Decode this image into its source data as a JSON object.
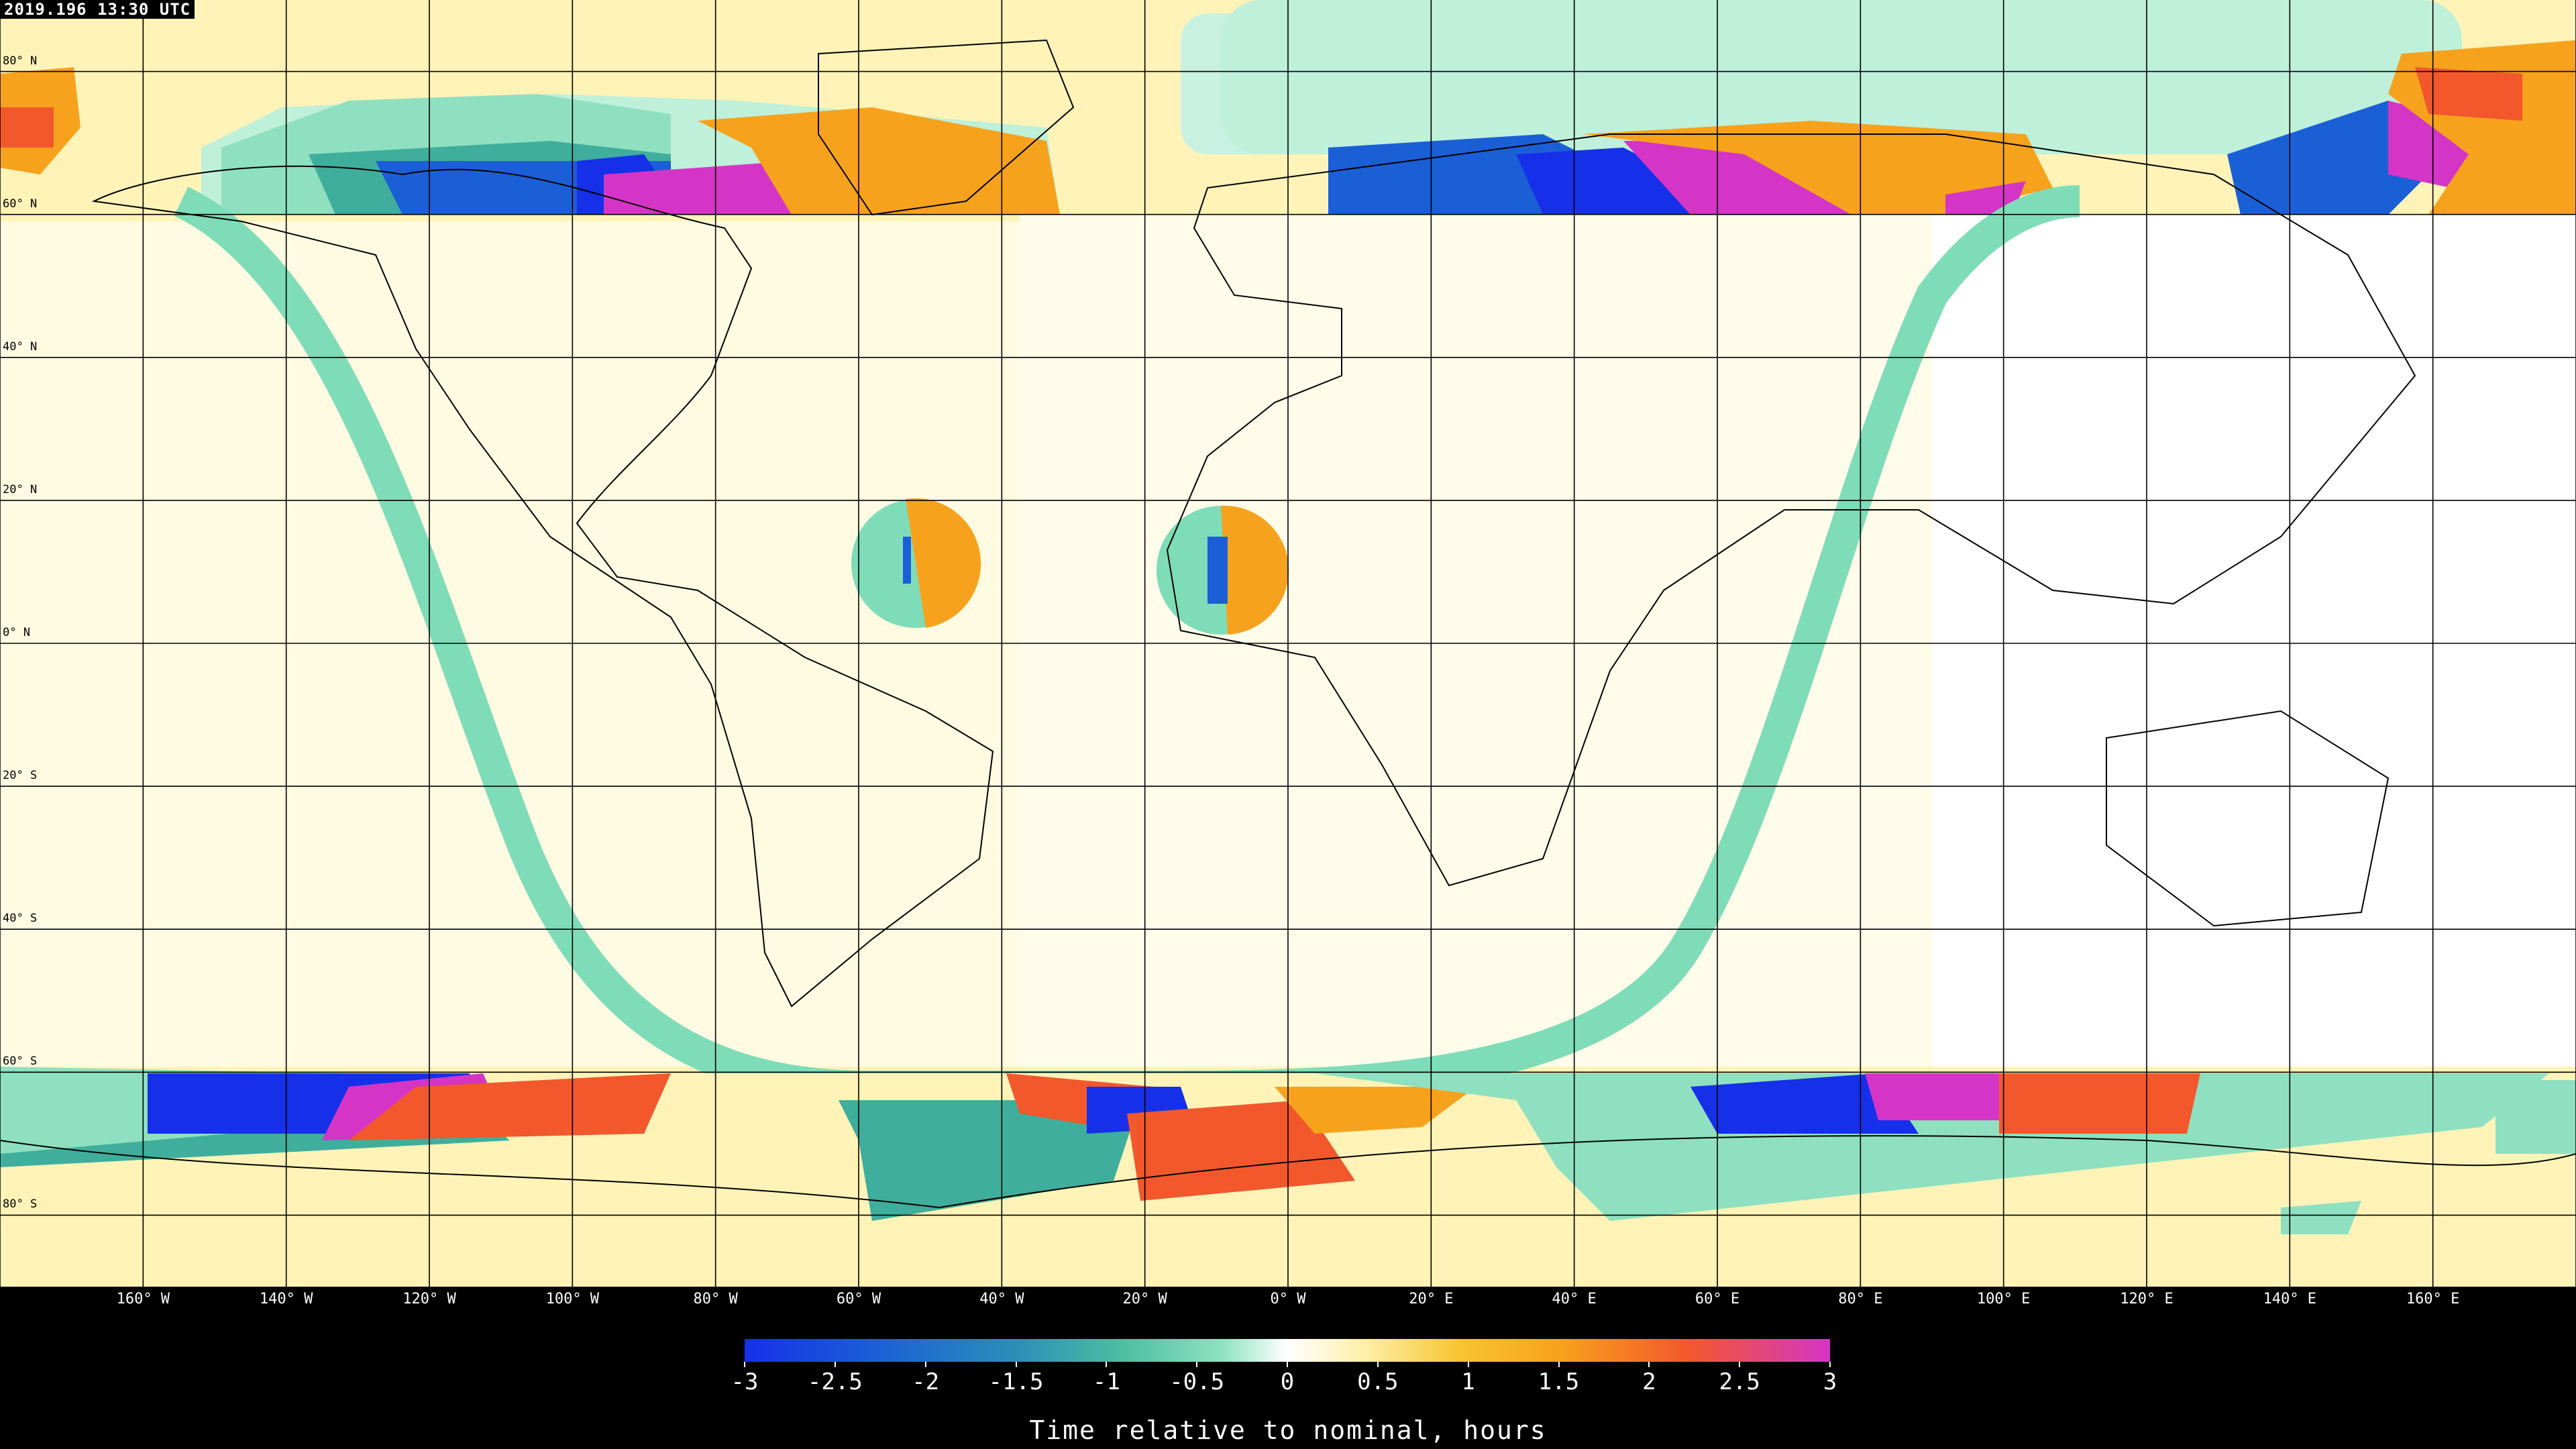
{
  "timestamp": "2019.196 13:30 UTC",
  "lat_labels": [
    "80° N",
    "60° N",
    "40° N",
    "20° N",
    "0° N",
    "20° S",
    "40° S",
    "60° S",
    "80° S"
  ],
  "lat_values": [
    80,
    60,
    40,
    20,
    0,
    -20,
    -40,
    -60,
    -80
  ],
  "lon_labels": [
    "160° W",
    "140° W",
    "120° W",
    "100° W",
    "80° W",
    "60° W",
    "40° W",
    "20° W",
    "0° W",
    "20° E",
    "40° E",
    "60° E",
    "80° E",
    "100° E",
    "120° E",
    "140° E",
    "160° E"
  ],
  "lon_values": [
    -160,
    -140,
    -120,
    -100,
    -80,
    -60,
    -40,
    -20,
    0,
    20,
    40,
    60,
    80,
    100,
    120,
    140,
    160
  ],
  "colorbar": {
    "title": "Time relative to nominal, hours",
    "ticks": [
      "-3",
      "-2.5",
      "-2",
      "-1.5",
      "-1",
      "-0.5",
      "0",
      "0.5",
      "1",
      "1.5",
      "2",
      "2.5",
      "3"
    ],
    "tick_values": [
      -3,
      -2.5,
      -2,
      -1.5,
      -1,
      -0.5,
      0,
      0.5,
      1,
      1.5,
      2,
      2.5,
      3
    ],
    "range": [
      -3,
      3
    ],
    "colors": [
      "#1530e8",
      "#2b8fb8",
      "#8ee2c3",
      "#ffffff",
      "#f8c430",
      "#f2582c",
      "#d535c6"
    ]
  },
  "colors": {
    "background_far": "#fff7c6",
    "background_near": "#fffdf0",
    "band": "#7fdcb8",
    "teal": "#3fae9c",
    "blue": "#1b5fd6",
    "deep_blue": "#1530e8",
    "orange": "#f7a21c",
    "red_orange": "#f2582c",
    "magenta": "#d535c6",
    "mint_light": "#c9f1e2",
    "grid": "#000000"
  }
}
